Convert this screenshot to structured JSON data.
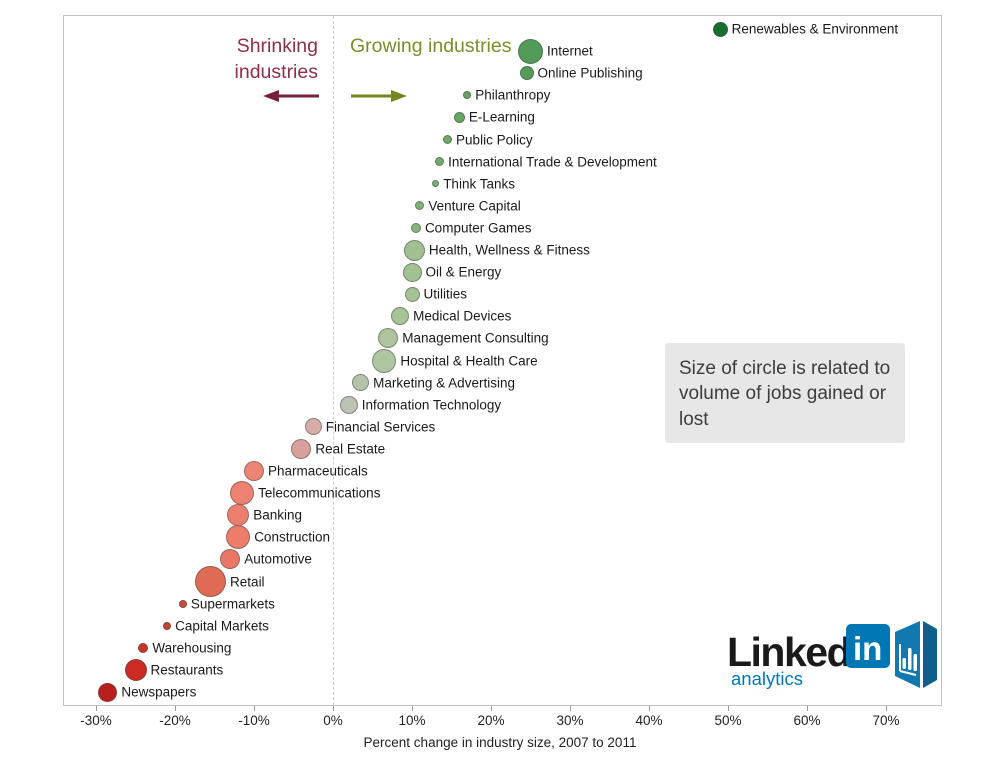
{
  "header": {
    "shrinking_label": "Shrinking industries",
    "growing_label": "Growing industries"
  },
  "annotation": {
    "text": "Size of circle is related to volume of jobs gained or lost"
  },
  "logo": {
    "linked": "Linked",
    "in": "in",
    "analytics": "analytics"
  },
  "axis": {
    "title": "Percent change in industry size, 2007 to 2011",
    "tick_labels": [
      "-30%",
      "-20%",
      "-10%",
      "0%",
      "10%",
      "20%",
      "30%",
      "40%",
      "50%",
      "60%",
      "70%"
    ]
  },
  "colors": {
    "shrinking_text": "#8c3048",
    "shrinking_arrow": "#7a1f3d",
    "growing_text": "#7d8d2b",
    "growing_arrow": "#75851f",
    "linkedin_blue": "#0077b5",
    "annotation_bg": "#e7e7e7"
  },
  "chart_data": {
    "type": "scatter",
    "title": "",
    "xlabel": "Percent change in industry size, 2007 to 2011",
    "xlim": [
      -34,
      77
    ],
    "x_ticks": [
      -30,
      -20,
      -10,
      0,
      10,
      20,
      30,
      40,
      50,
      60,
      70
    ],
    "size_note": "Size of circle is related to volume of jobs gained or lost",
    "points": [
      {
        "name": "Renewables & Environment",
        "pct": 49,
        "r": 7.5,
        "color": "#15702f"
      },
      {
        "name": "Internet",
        "pct": 25,
        "r": 12.5,
        "color": "#4f9b57"
      },
      {
        "name": "Online Publishing",
        "pct": 24.5,
        "r": 7,
        "color": "#539c59"
      },
      {
        "name": "Philanthropy",
        "pct": 17,
        "r": 4,
        "color": "#64a562"
      },
      {
        "name": "E-Learning",
        "pct": 16,
        "r": 5.5,
        "color": "#67a764"
      },
      {
        "name": "Public Policy",
        "pct": 14.5,
        "r": 4.5,
        "color": "#6daa68"
      },
      {
        "name": "International Trade & Development",
        "pct": 13.5,
        "r": 4.5,
        "color": "#72ac6b"
      },
      {
        "name": "Think Tanks",
        "pct": 13,
        "r": 3.5,
        "color": "#77af6f"
      },
      {
        "name": "Venture Capital",
        "pct": 11,
        "r": 4.5,
        "color": "#7fb275"
      },
      {
        "name": "Computer Games",
        "pct": 10.5,
        "r": 5,
        "color": "#87b67b"
      },
      {
        "name": "Health, Wellness & Fitness",
        "pct": 10.3,
        "r": 10.5,
        "color": "#a0c091"
      },
      {
        "name": "Oil & Energy",
        "pct": 10,
        "r": 9.5,
        "color": "#a2c193"
      },
      {
        "name": "Utilities",
        "pct": 10,
        "r": 7.5,
        "color": "#a4c295"
      },
      {
        "name": "Medical Devices",
        "pct": 8.5,
        "r": 9,
        "color": "#a9c399"
      },
      {
        "name": "Management Consulting",
        "pct": 7,
        "r": 10,
        "color": "#adc49d"
      },
      {
        "name": "Hospital & Health Care",
        "pct": 6.5,
        "r": 12,
        "color": "#b0c6a1"
      },
      {
        "name": "Marketing & Advertising",
        "pct": 3.5,
        "r": 8.5,
        "color": "#b5c4a8"
      },
      {
        "name": "Information Technology",
        "pct": 2,
        "r": 9,
        "color": "#bdc3b2"
      },
      {
        "name": "Financial Services",
        "pct": -2.5,
        "r": 8.5,
        "color": "#d8aca7"
      },
      {
        "name": "Real Estate",
        "pct": -4,
        "r": 10,
        "color": "#d7a09a"
      },
      {
        "name": "Pharmaceuticals",
        "pct": -10,
        "r": 10,
        "color": "#ee8574"
      },
      {
        "name": "Telecommunications",
        "pct": -11.5,
        "r": 12,
        "color": "#ee8271"
      },
      {
        "name": "Banking",
        "pct": -12,
        "r": 11,
        "color": "#ed7f6e"
      },
      {
        "name": "Construction",
        "pct": -12,
        "r": 12,
        "color": "#ec7d6b"
      },
      {
        "name": "Automotive",
        "pct": -13,
        "r": 10,
        "color": "#ea7765"
      },
      {
        "name": "Retail",
        "pct": -15.5,
        "r": 15.5,
        "color": "#e06b53"
      },
      {
        "name": "Supermarkets",
        "pct": -19,
        "r": 4,
        "color": "#cc4d39"
      },
      {
        "name": "Capital Markets",
        "pct": -21,
        "r": 4,
        "color": "#c64331"
      },
      {
        "name": "Warehousing",
        "pct": -24,
        "r": 5,
        "color": "#c73627"
      },
      {
        "name": "Restaurants",
        "pct": -25,
        "r": 11,
        "color": "#cb2b23"
      },
      {
        "name": "Newspapers",
        "pct": -28.5,
        "r": 9.5,
        "color": "#b91f1d"
      }
    ]
  }
}
